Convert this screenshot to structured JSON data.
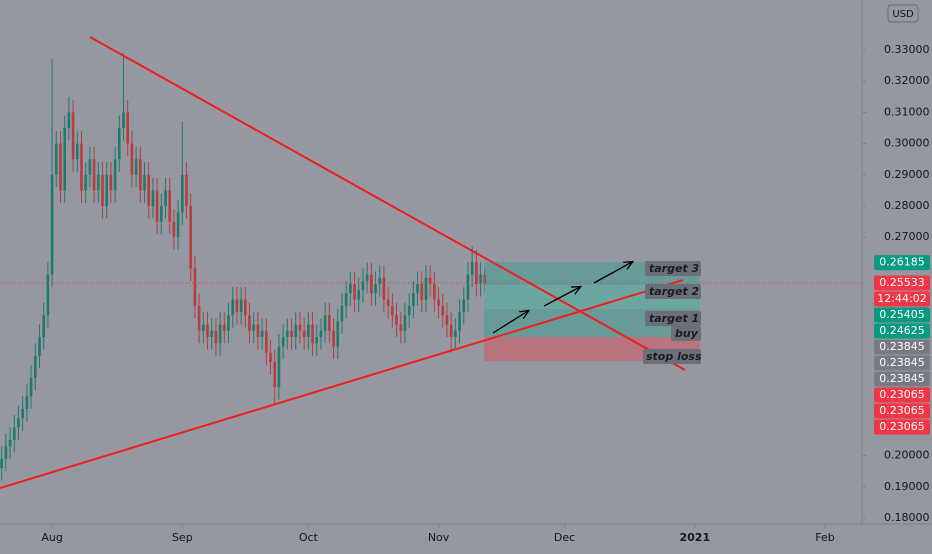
{
  "chart_data": {
    "type": "candlestick",
    "currency": "USD",
    "up_color": "#1f7a6a",
    "down_color": "#b83c3c",
    "open": [
      0.196,
      0.199,
      0.203,
      0.205,
      0.209,
      0.212,
      0.215,
      0.219,
      0.225,
      0.232,
      0.238,
      0.245,
      0.258,
      0.29,
      0.3,
      0.285,
      0.305,
      0.31,
      0.295,
      0.3,
      0.285,
      0.29,
      0.295,
      0.285,
      0.29,
      0.28,
      0.29,
      0.285,
      0.295,
      0.305,
      0.31,
      0.3,
      0.29,
      0.295,
      0.285,
      0.29,
      0.28,
      0.285,
      0.275,
      0.28,
      0.285,
      0.275,
      0.27,
      0.278,
      0.29,
      0.28,
      0.26,
      0.248,
      0.24,
      0.242,
      0.238,
      0.24,
      0.236,
      0.242,
      0.24,
      0.245,
      0.25,
      0.246,
      0.25,
      0.245,
      0.24,
      0.242,
      0.238,
      0.24,
      0.233,
      0.23,
      0.222,
      0.235,
      0.238,
      0.24,
      0.238,
      0.242,
      0.24,
      0.238,
      0.242,
      0.236,
      0.238,
      0.24,
      0.245,
      0.24,
      0.235,
      0.243,
      0.248,
      0.252,
      0.255,
      0.25,
      0.253,
      0.256,
      0.258,
      0.252,
      0.255,
      0.257,
      0.25,
      0.248,
      0.245,
      0.242,
      0.24,
      0.245,
      0.248,
      0.252,
      0.255,
      0.25,
      0.257,
      0.255,
      0.25,
      0.248,
      0.245,
      0.242,
      0.238,
      0.24,
      0.246,
      0.25,
      0.258,
      0.262,
      0.255,
      0.258
    ],
    "high": [
      0.203,
      0.207,
      0.209,
      0.213,
      0.216,
      0.219,
      0.223,
      0.229,
      0.236,
      0.242,
      0.249,
      0.262,
      0.327,
      0.304,
      0.304,
      0.309,
      0.315,
      0.314,
      0.304,
      0.304,
      0.294,
      0.299,
      0.299,
      0.294,
      0.294,
      0.294,
      0.294,
      0.299,
      0.309,
      0.329,
      0.314,
      0.304,
      0.299,
      0.299,
      0.294,
      0.294,
      0.289,
      0.289,
      0.284,
      0.289,
      0.289,
      0.279,
      0.282,
      0.307,
      0.294,
      0.284,
      0.264,
      0.252,
      0.246,
      0.246,
      0.244,
      0.244,
      0.246,
      0.246,
      0.249,
      0.254,
      0.254,
      0.254,
      0.254,
      0.249,
      0.246,
      0.246,
      0.244,
      0.244,
      0.237,
      0.234,
      0.239,
      0.242,
      0.244,
      0.244,
      0.246,
      0.246,
      0.244,
      0.246,
      0.246,
      0.242,
      0.244,
      0.249,
      0.249,
      0.244,
      0.247,
      0.252,
      0.256,
      0.259,
      0.259,
      0.257,
      0.26,
      0.262,
      0.262,
      0.259,
      0.261,
      0.261,
      0.254,
      0.252,
      0.249,
      0.246,
      0.249,
      0.252,
      0.256,
      0.259,
      0.259,
      0.261,
      0.261,
      0.259,
      0.254,
      0.252,
      0.249,
      0.246,
      0.244,
      0.25,
      0.254,
      0.262,
      0.267,
      0.266,
      0.262,
      0.26
    ],
    "low": [
      0.192,
      0.195,
      0.199,
      0.201,
      0.205,
      0.208,
      0.211,
      0.215,
      0.221,
      0.228,
      0.234,
      0.241,
      0.254,
      0.286,
      0.281,
      0.281,
      0.301,
      0.291,
      0.291,
      0.281,
      0.281,
      0.286,
      0.281,
      0.281,
      0.276,
      0.276,
      0.281,
      0.281,
      0.291,
      0.301,
      0.296,
      0.286,
      0.286,
      0.281,
      0.281,
      0.276,
      0.276,
      0.271,
      0.271,
      0.276,
      0.271,
      0.266,
      0.266,
      0.274,
      0.276,
      0.256,
      0.244,
      0.236,
      0.236,
      0.234,
      0.234,
      0.232,
      0.232,
      0.236,
      0.236,
      0.241,
      0.242,
      0.242,
      0.241,
      0.236,
      0.236,
      0.234,
      0.234,
      0.229,
      0.226,
      0.2165,
      0.218,
      0.231,
      0.234,
      0.234,
      0.234,
      0.236,
      0.234,
      0.234,
      0.232,
      0.232,
      0.234,
      0.236,
      0.236,
      0.231,
      0.231,
      0.239,
      0.244,
      0.248,
      0.246,
      0.246,
      0.249,
      0.252,
      0.248,
      0.248,
      0.251,
      0.246,
      0.244,
      0.241,
      0.238,
      0.236,
      0.236,
      0.241,
      0.244,
      0.248,
      0.246,
      0.246,
      0.251,
      0.246,
      0.244,
      0.241,
      0.238,
      0.233,
      0.234,
      0.236,
      0.242,
      0.246,
      0.254,
      0.251,
      0.251,
      0.252
    ],
    "close": [
      0.199,
      0.203,
      0.205,
      0.209,
      0.212,
      0.215,
      0.219,
      0.225,
      0.232,
      0.238,
      0.245,
      0.258,
      0.29,
      0.3,
      0.285,
      0.305,
      0.31,
      0.295,
      0.3,
      0.285,
      0.29,
      0.295,
      0.285,
      0.29,
      0.28,
      0.29,
      0.285,
      0.295,
      0.305,
      0.31,
      0.3,
      0.29,
      0.295,
      0.285,
      0.29,
      0.28,
      0.285,
      0.275,
      0.28,
      0.285,
      0.275,
      0.27,
      0.278,
      0.29,
      0.28,
      0.26,
      0.248,
      0.24,
      0.242,
      0.238,
      0.24,
      0.236,
      0.242,
      0.24,
      0.245,
      0.25,
      0.246,
      0.25,
      0.245,
      0.24,
      0.242,
      0.238,
      0.24,
      0.233,
      0.23,
      0.222,
      0.235,
      0.238,
      0.24,
      0.238,
      0.242,
      0.24,
      0.238,
      0.242,
      0.236,
      0.238,
      0.24,
      0.245,
      0.24,
      0.235,
      0.243,
      0.248,
      0.252,
      0.255,
      0.25,
      0.253,
      0.256,
      0.258,
      0.252,
      0.255,
      0.257,
      0.25,
      0.248,
      0.245,
      0.242,
      0.24,
      0.245,
      0.248,
      0.252,
      0.255,
      0.25,
      0.257,
      0.255,
      0.25,
      0.248,
      0.245,
      0.242,
      0.238,
      0.24,
      0.246,
      0.25,
      0.258,
      0.262,
      0.255,
      0.258,
      0.2553
    ],
    "xlim": [
      -0.4,
      204.8
    ],
    "xticks": [
      {
        "value": 12,
        "label": "Aug"
      },
      {
        "value": 43,
        "label": "Sep"
      },
      {
        "value": 73,
        "label": "Oct"
      },
      {
        "value": 104,
        "label": "Nov"
      },
      {
        "value": 134,
        "label": "Dec"
      },
      {
        "value": 165,
        "label": "2021"
      },
      {
        "value": 196,
        "label": "Feb"
      }
    ],
    "ylim": [
      0.17808,
      0.34603
    ],
    "yticks": [
      {
        "value": 0.33,
        "label": "0.33000"
      },
      {
        "value": 0.32,
        "label": "0.32000"
      },
      {
        "value": 0.31,
        "label": "0.31000"
      },
      {
        "value": 0.3,
        "label": "0.30000"
      },
      {
        "value": 0.29,
        "label": "0.29000"
      },
      {
        "value": 0.28,
        "label": "0.28000"
      },
      {
        "value": 0.27,
        "label": "0.27000"
      },
      {
        "value": 0.2,
        "label": "0.20000"
      },
      {
        "value": 0.19,
        "label": "0.19000"
      },
      {
        "value": 0.18,
        "label": "0.18000"
      }
    ],
    "price_labels": [
      {
        "value": 0.26185,
        "color": "#089981"
      },
      {
        "value": 0.25533,
        "color": "#f23645"
      },
      {
        "label": "12:44:02",
        "color": "#f23645"
      },
      {
        "value": 0.25405,
        "color": "#089981"
      },
      {
        "value": 0.24625,
        "color": "#089981"
      },
      {
        "value": 0.23845,
        "color": "#787b86"
      },
      {
        "value": 0.23845,
        "color": "#787b86"
      },
      {
        "value": 0.23845,
        "color": "#787b86"
      },
      {
        "value": 0.23065,
        "color": "#f23645"
      },
      {
        "value": 0.23065,
        "color": "#f23645"
      },
      {
        "value": 0.23065,
        "color": "#f23645"
      }
    ],
    "annotations": [
      "target 3",
      "target 2",
      "target 1",
      "buy",
      "stop loss"
    ]
  }
}
